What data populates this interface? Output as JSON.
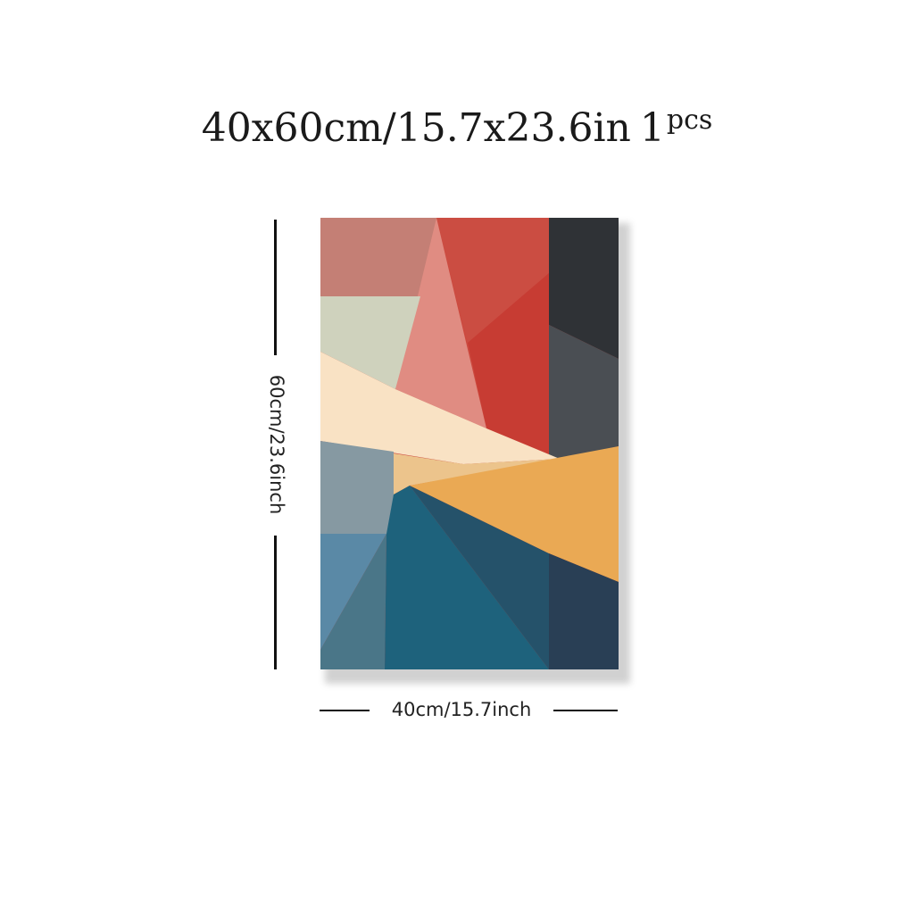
{
  "title": {
    "size_text": "40x60cm/15.7x23.6in",
    "quantity": "1",
    "quantity_unit": "pcs"
  },
  "dimensions": {
    "height_label": "60cm/23.6inch",
    "width_label": "40cm/15.7inch"
  },
  "artwork": {
    "description_colors": {
      "dusty_rose": "#c47f75",
      "salmon_pink": "#e08c82",
      "red": "#cc4a3f",
      "deep_red": "#c73c33",
      "charcoal": "#2f3236",
      "slate_gray": "#4a4e53",
      "sage": "#cfd2bd",
      "cream": "#f9e2c4",
      "pale_orange": "#ecc48c",
      "blue_gray": "#8699a2",
      "steel_blue": "#5a89a6",
      "muted_teal": "#4a7688",
      "teal": "#1e627c",
      "dark_teal": "#25526a",
      "navy": "#293f55",
      "orange": "#eaa954"
    }
  }
}
